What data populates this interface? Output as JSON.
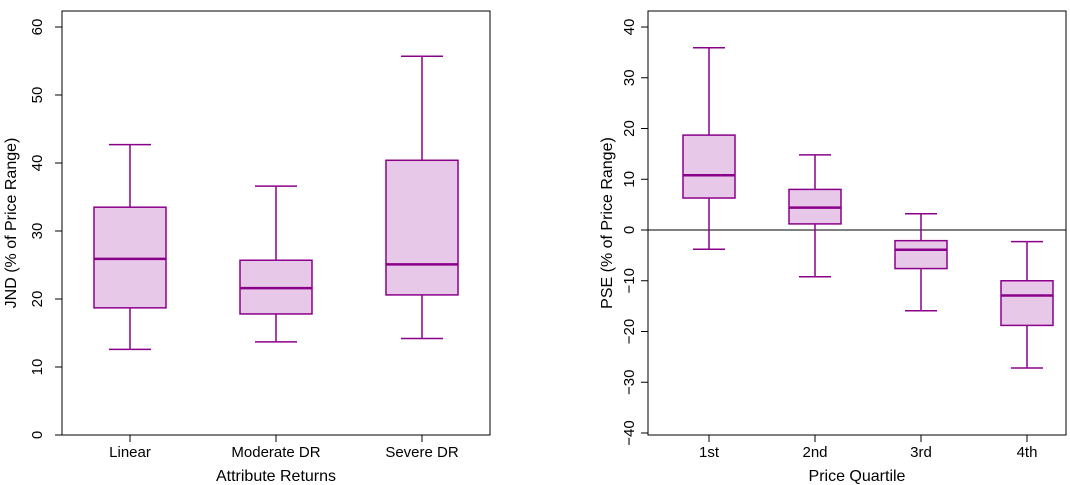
{
  "chart_data": [
    {
      "type": "box",
      "xlabel": "Attribute Returns",
      "ylabel": "JND (% of Price Range)",
      "ylim": [
        0,
        62
      ],
      "yticks": [
        "0",
        "10",
        "20",
        "30",
        "40",
        "50",
        "60"
      ],
      "ytick_values": [
        0,
        10,
        20,
        30,
        40,
        50,
        60
      ],
      "categories": [
        "Linear",
        "Moderate DR",
        "Severe DR"
      ],
      "boxes": [
        {
          "category": "Linear",
          "whisker_low": 12.6,
          "q1": 18.7,
          "median": 25.9,
          "q3": 33.5,
          "whisker_high": 42.7
        },
        {
          "category": "Moderate DR",
          "whisker_low": 13.7,
          "q1": 17.8,
          "median": 21.6,
          "q3": 25.7,
          "whisker_high": 36.6
        },
        {
          "category": "Severe DR",
          "whisker_low": 14.2,
          "q1": 20.6,
          "median": 25.1,
          "q3": 40.4,
          "whisker_high": 55.7
        }
      ],
      "reference_line": null,
      "box_fill": "#e8c8e8",
      "box_stroke": "#8b008b"
    },
    {
      "type": "box",
      "xlabel": "Price Quartile",
      "ylabel": "PSE (% of Price Range)",
      "ylim": [
        -40,
        42
      ],
      "yticks": [
        "−40",
        "−30",
        "−20",
        "−10",
        "0",
        "10",
        "20",
        "30",
        "40"
      ],
      "ytick_values": [
        -40,
        -30,
        -20,
        -10,
        0,
        10,
        20,
        30,
        40
      ],
      "categories": [
        "1st",
        "2nd",
        "3rd",
        "4th"
      ],
      "boxes": [
        {
          "category": "1st",
          "whisker_low": -3.8,
          "q1": 6.3,
          "median": 10.8,
          "q3": 18.7,
          "whisker_high": 35.9
        },
        {
          "category": "2nd",
          "whisker_low": -9.2,
          "q1": 1.2,
          "median": 4.4,
          "q3": 8.0,
          "whisker_high": 14.8
        },
        {
          "category": "3rd",
          "whisker_low": -15.9,
          "q1": -7.6,
          "median": -3.9,
          "q3": -2.1,
          "whisker_high": 3.2
        },
        {
          "category": "4th",
          "whisker_low": -27.2,
          "q1": -18.8,
          "median": -12.9,
          "q3": -10.0,
          "whisker_high": -2.3
        }
      ],
      "reference_line": 0,
      "box_fill": "#e8c8e8",
      "box_stroke": "#8b008b"
    }
  ]
}
